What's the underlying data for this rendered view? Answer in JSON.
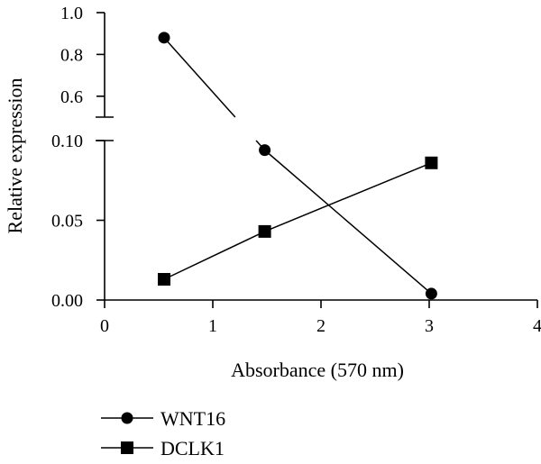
{
  "chart_data": {
    "type": "line",
    "xlabel": "Absorbance (570 nm)",
    "ylabel": "Relative expression",
    "xlim": [
      0,
      4
    ],
    "x_ticks": [
      "0",
      "1",
      "2",
      "3",
      "4"
    ],
    "y_axis_break": true,
    "y_lower_range": [
      0.0,
      0.1
    ],
    "y_upper_range": [
      0.5,
      1.0
    ],
    "y_lower_ticks": [
      "0.00",
      "0.05",
      "0.10"
    ],
    "y_upper_ticks": [
      "0.6",
      "0.8",
      "1.0"
    ],
    "grid": false,
    "legend_position": "bottom-left",
    "series": [
      {
        "name": "WNT16",
        "marker": "circle",
        "x": [
          0.55,
          1.48,
          3.02
        ],
        "y": [
          0.88,
          0.094,
          0.004
        ]
      },
      {
        "name": "DCLK1",
        "marker": "square",
        "x": [
          0.55,
          1.48,
          3.02
        ],
        "y": [
          0.013,
          0.043,
          0.086
        ]
      }
    ]
  }
}
